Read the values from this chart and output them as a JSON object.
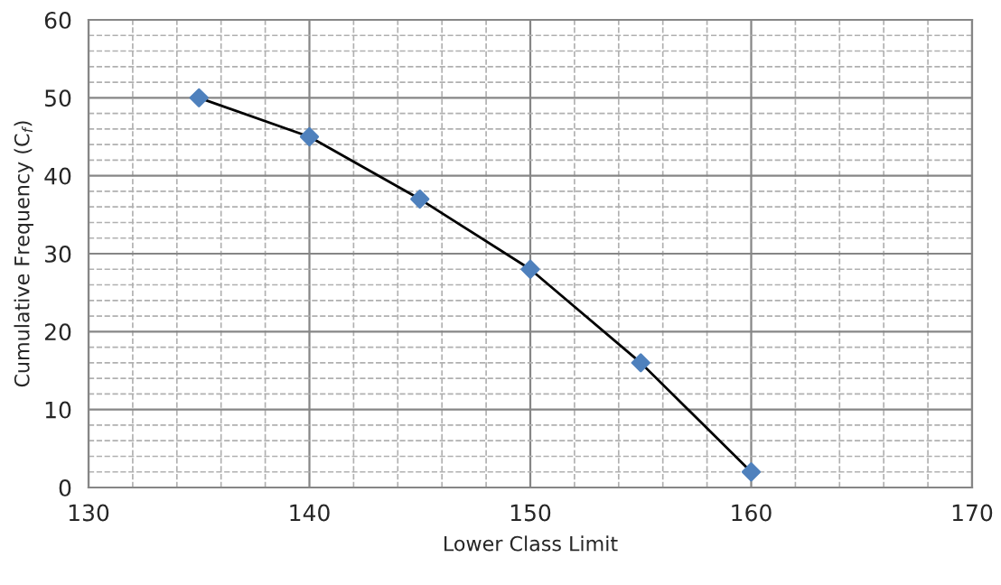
{
  "chart_data": {
    "type": "line",
    "xlabel": "Lower Class Limit",
    "ylabel": "Cumulative Frequency (C$_{f}$)",
    "x": [
      135,
      140,
      145,
      150,
      155,
      160
    ],
    "series": [
      {
        "color": "#4f81bd",
        "values": [
          50,
          45,
          37,
          28,
          16,
          2
        ]
      }
    ],
    "xlim": [
      130,
      170
    ],
    "xticks": [
      130,
      140,
      150,
      160,
      170
    ],
    "ylim": [
      0,
      60
    ],
    "yticks": [
      0,
      10,
      20,
      30,
      40,
      50,
      60
    ],
    "grid": true,
    "marker": "diamond"
  }
}
